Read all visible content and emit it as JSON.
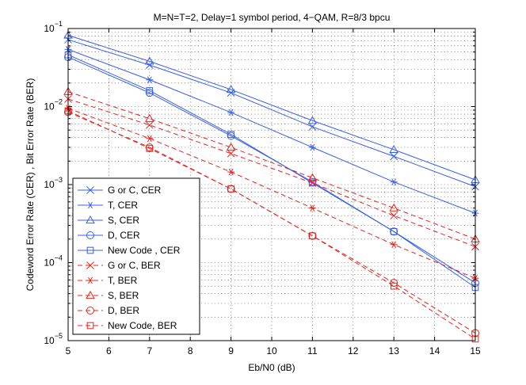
{
  "chart_data": {
    "type": "line",
    "title": "M=N=T=2, Delay=1 symbol period, 4−QAM, R=8/3 bpcu",
    "xlabel": "Eb/N0 (dB)",
    "ylabel": "Codeword Error Rate (CER) , Bit Error Rate (BER)",
    "x_scale": "linear",
    "y_scale": "log",
    "xlim": [
      5,
      15
    ],
    "ylim": [
      1e-05,
      0.1
    ],
    "grid": true,
    "legend_position": "lower-left",
    "x_ticks": [
      "5",
      "6",
      "7",
      "8",
      "9",
      "10",
      "11",
      "12",
      "13",
      "14",
      "15"
    ],
    "y_ticks": [
      {
        "base": "10",
        "exp": "−5"
      },
      {
        "base": "10",
        "exp": "−4"
      },
      {
        "base": "10",
        "exp": "−3"
      },
      {
        "base": "10",
        "exp": "−2"
      },
      {
        "base": "10",
        "exp": "−1"
      }
    ],
    "x": [
      5,
      7,
      9,
      11,
      13,
      15
    ],
    "series": [
      {
        "name": "G or C, CER",
        "color": "#3a5fe6",
        "dash": "solid",
        "marker": "x",
        "values": [
          0.072,
          0.034,
          0.015,
          0.0055,
          0.0023,
          0.00094
        ]
      },
      {
        "name": "T, CER",
        "color": "#3a5fe6",
        "dash": "solid",
        "marker": "star",
        "values": [
          0.054,
          0.022,
          0.0084,
          0.003,
          0.00108,
          0.00043
        ]
      },
      {
        "name": "S, CER",
        "color": "#3a5fe6",
        "dash": "solid",
        "marker": "triangle",
        "values": [
          0.082,
          0.038,
          0.0165,
          0.0066,
          0.0028,
          0.00115
        ]
      },
      {
        "name": "D, CER",
        "color": "#3a5fe6",
        "dash": "solid",
        "marker": "circle",
        "values": [
          0.043,
          0.015,
          0.0042,
          0.00108,
          0.00025,
          5.5e-05
        ]
      },
      {
        "name": "New Code , CER",
        "color": "#3a5fe6",
        "dash": "solid",
        "marker": "square",
        "values": [
          0.046,
          0.016,
          0.0044,
          0.00105,
          0.00025,
          4.8e-05
        ]
      },
      {
        "name": "G or C, BER",
        "color": "#e8231e",
        "dash": "dashed",
        "marker": "x",
        "values": [
          0.0125,
          0.0058,
          0.0025,
          0.00105,
          0.0004,
          0.00016
        ]
      },
      {
        "name": "T, BER",
        "color": "#e8231e",
        "dash": "dashed",
        "marker": "star",
        "values": [
          0.0095,
          0.0039,
          0.00145,
          0.0005,
          0.00017,
          6.3e-05
        ]
      },
      {
        "name": "S, BER",
        "color": "#e8231e",
        "dash": "dashed",
        "marker": "triangle",
        "values": [
          0.0155,
          0.007,
          0.003,
          0.00122,
          0.0005,
          0.0002
        ]
      },
      {
        "name": "D, BER",
        "color": "#e8231e",
        "dash": "dashed",
        "marker": "circle",
        "values": [
          0.0085,
          0.003,
          0.00088,
          0.00022,
          5.5e-05,
          1.25e-05
        ]
      },
      {
        "name": "New Code, BER",
        "color": "#e8231e",
        "dash": "dashed",
        "marker": "square",
        "values": [
          0.0088,
          0.0029,
          0.00088,
          0.00022,
          5e-05,
          1.05e-05
        ]
      }
    ]
  }
}
